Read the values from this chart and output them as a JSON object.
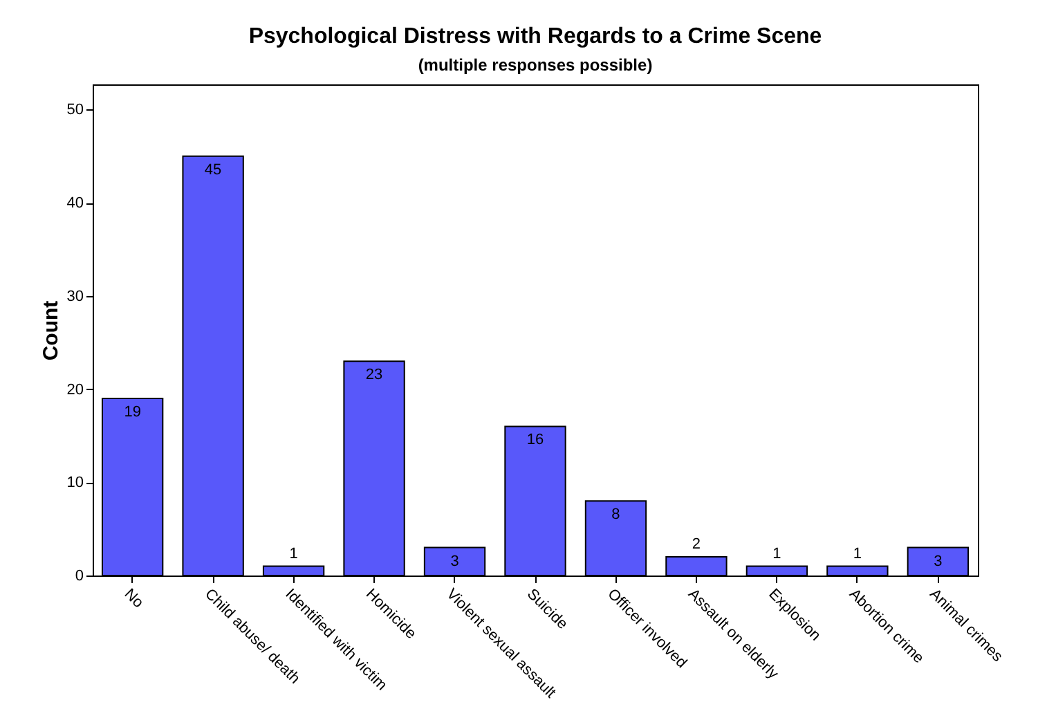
{
  "chart_data": {
    "type": "bar",
    "title": "Psychological Distress with Regards to a Crime Scene",
    "subtitle": "(multiple responses possible)",
    "ylabel": "Count",
    "categories": [
      "No",
      "Child abuse/ death",
      "Identified with victim",
      "Homicide",
      "Violent sexual assault",
      "Suicide",
      "Officer involved",
      "Assault on elderly",
      "Explosion",
      "Abortion crime",
      "Animal crimes"
    ],
    "values": [
      19,
      45,
      1,
      23,
      3,
      16,
      8,
      2,
      1,
      1,
      3
    ],
    "color": "#5858fa",
    "ylim": [
      0,
      52.7
    ],
    "yticks": [
      0,
      10,
      20,
      30,
      40,
      50
    ],
    "grid": false,
    "data_labels": true
  }
}
